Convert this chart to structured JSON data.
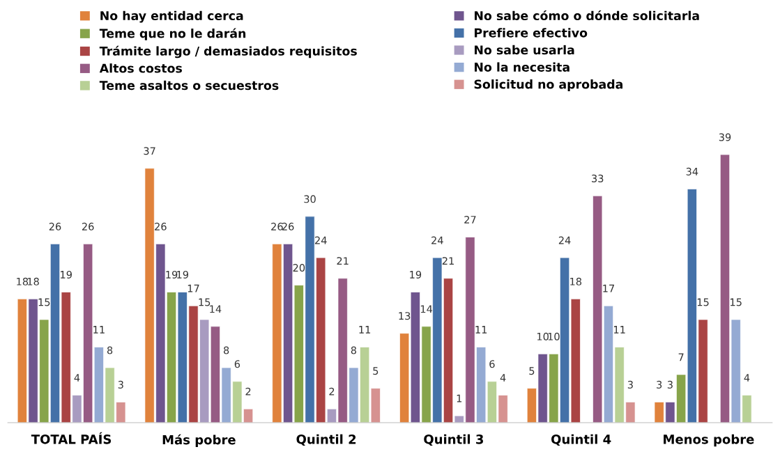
{
  "chart_data": {
    "type": "bar",
    "categories": [
      "TOTAL PAÍS",
      "Más pobre",
      "Quintil 2",
      "Quintil 3",
      "Quintil 4",
      "Menos pobre"
    ],
    "series": [
      {
        "name": "No hay entidad cerca",
        "color": "#e0823c",
        "values": [
          18,
          37,
          26,
          13,
          5,
          3
        ]
      },
      {
        "name": "No sabe cómo o dónde solicitarla",
        "color": "#6f558e",
        "values": [
          18,
          26,
          26,
          19,
          10,
          3
        ]
      },
      {
        "name": "Teme que no le darán",
        "color": "#87a44a",
        "values": [
          15,
          19,
          20,
          14,
          10,
          7
        ]
      },
      {
        "name": "Prefiere efectivo",
        "color": "#4471a8",
        "values": [
          26,
          19,
          30,
          24,
          24,
          34
        ]
      },
      {
        "name": "Trámite largo / demasiados requisitos",
        "color": "#aa4444",
        "values": [
          19,
          17,
          24,
          21,
          18,
          15
        ]
      },
      {
        "name": "No sabe usarla",
        "color": "#a89bc0",
        "values": [
          4,
          15,
          2,
          1,
          null,
          null
        ]
      },
      {
        "name": "Altos costos",
        "color": "#965b84",
        "values": [
          26,
          14,
          21,
          27,
          33,
          39
        ]
      },
      {
        "name": "No la necesita",
        "color": "#94aad3",
        "values": [
          11,
          8,
          8,
          11,
          17,
          15
        ]
      },
      {
        "name": "Teme asaltos o secuestros",
        "color": "#b8d095",
        "values": [
          8,
          6,
          11,
          6,
          11,
          4
        ]
      },
      {
        "name": "Solicitud no aprobada",
        "color": "#d69290",
        "values": [
          3,
          2,
          5,
          4,
          3,
          null
        ]
      }
    ],
    "data_labels": true,
    "legend": "top",
    "tick_labels": "x",
    "grid": false
  }
}
